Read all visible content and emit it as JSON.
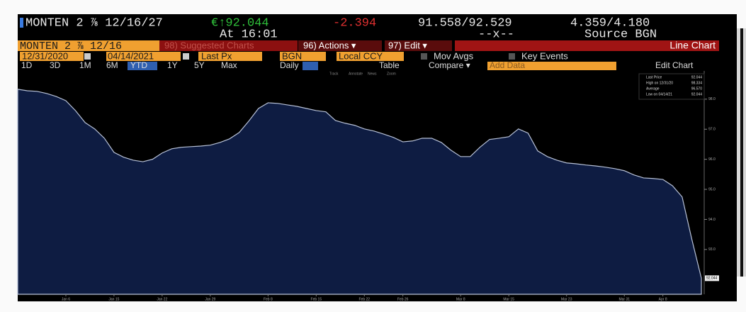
{
  "header": {
    "security": "MONTEN 2 ⅞ 12/16/27",
    "price": "€↑92.044",
    "change": "-2.394",
    "bid_ask": "91.558/92.529",
    "yield": "4.359/4.180",
    "time": "At 16:01",
    "size": "--x--",
    "source": "Source BGN"
  },
  "toolbar": {
    "ticker": "MONTEN 2 ⅞ 12/16",
    "suggested": "98) Suggested Charts",
    "actions": "96) Actions ▾",
    "edit": "97) Edit ▾",
    "chart_kind": "Line Chart",
    "start_date": "12/31/2020",
    "end_date": "04/14/2021",
    "field": "Last Px",
    "pricing_source": "BGN",
    "currency": "Local CCY",
    "mov_avgs": "Mov Avgs",
    "key_events": "Key Events",
    "periods": [
      "1D",
      "3D",
      "1M",
      "6M",
      "YTD",
      "1Y",
      "5Y",
      "Max"
    ],
    "frequency": "Daily ▼",
    "table": "Table",
    "compare": "Compare ▾",
    "add_data": "Add Data",
    "edit_chart": "Edit Chart",
    "tools": [
      "Track",
      "Annotate",
      "News",
      "Zoom"
    ]
  },
  "chart_data": {
    "type": "area",
    "color": "#0e1c42",
    "line_color": "#b8c2d8",
    "categories": [
      null,
      null,
      null,
      null,
      null,
      "Jan 6",
      null,
      null,
      null,
      null,
      "Jan 15",
      null,
      null,
      null,
      null,
      "Jan 22",
      null,
      null,
      null,
      null,
      "Jan 29",
      null,
      null,
      null,
      null,
      null,
      "Feb 8",
      null,
      null,
      null,
      null,
      "Feb 15",
      null,
      null,
      null,
      null,
      "Feb 22",
      null,
      null,
      null,
      "Feb 26",
      null,
      null,
      null,
      null,
      null,
      "Mar 8",
      null,
      null,
      null,
      null,
      "Mar 15",
      null,
      null,
      null,
      null,
      null,
      "Mar 23",
      null,
      null,
      null,
      null,
      null,
      "Mar 31",
      null,
      null,
      null,
      "Apr 8",
      null,
      null,
      null,
      null
    ],
    "values": [
      98.33,
      98.28,
      98.26,
      98.19,
      98.09,
      97.95,
      97.62,
      97.22,
      97.01,
      96.7,
      96.23,
      96.07,
      95.97,
      95.92,
      96.0,
      96.21,
      96.35,
      96.4,
      96.42,
      96.44,
      96.47,
      96.56,
      96.68,
      96.89,
      97.27,
      97.69,
      97.88,
      97.86,
      97.81,
      97.76,
      97.69,
      97.62,
      97.58,
      97.29,
      97.2,
      97.13,
      97.01,
      96.94,
      96.84,
      96.73,
      96.58,
      96.61,
      96.7,
      96.7,
      96.56,
      96.3,
      96.09,
      96.09,
      96.4,
      96.66,
      96.7,
      96.75,
      97.01,
      96.87,
      96.28,
      96.09,
      95.97,
      95.88,
      95.85,
      95.81,
      95.78,
      95.74,
      95.69,
      95.62,
      95.48,
      95.38,
      95.36,
      95.33,
      95.12,
      94.75,
      93.35,
      92.044
    ],
    "ylim": [
      91.51,
      98.94
    ],
    "yticks": [
      {
        "value": 93,
        "label": "93.0"
      },
      {
        "value": 94,
        "label": "94.0"
      },
      {
        "value": 95,
        "label": "95.0"
      },
      {
        "value": 96,
        "label": "96.0"
      },
      {
        "value": 97,
        "label": "97.0"
      },
      {
        "value": 98,
        "label": "98.0"
      }
    ],
    "last_price_tag": "92.044",
    "legend": [
      {
        "label": "Last Price",
        "value": "92.044"
      },
      {
        "label": "High on 12/31/20",
        "value": "98.334"
      },
      {
        "label": "Average",
        "value": "96.570"
      },
      {
        "label": "Low on 04/14/21",
        "value": "92.044"
      }
    ]
  }
}
